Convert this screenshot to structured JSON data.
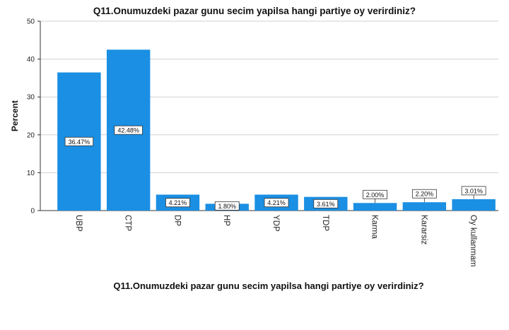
{
  "chart_data": {
    "type": "bar",
    "title": "Q11.Onumuzdeki pazar gunu secim yapilsa hangi partiye oy verirdiniz?",
    "xlabel": "Q11.Onumuzdeki pazar gunu secim yapilsa hangi partiye oy verirdiniz?",
    "ylabel": "Percent",
    "ylim": [
      0,
      50
    ],
    "yticks": [
      0,
      10,
      20,
      30,
      40,
      50
    ],
    "grid": true,
    "categories": [
      "UBP",
      "CTP",
      "DP",
      "HP",
      "YDP",
      "TDP",
      "Karma",
      "Kararsiz",
      "Oy kullanmam"
    ],
    "values": [
      36.47,
      42.48,
      4.21,
      1.8,
      4.21,
      3.61,
      2.0,
      2.2,
      3.01
    ],
    "data_labels": [
      "36.47%",
      "42.48%",
      "4.21%",
      "1.80%",
      "4.21%",
      "3.61%",
      "2.00%",
      "2.20%",
      "3.01%"
    ],
    "bar_color": "#1a8fe3"
  }
}
